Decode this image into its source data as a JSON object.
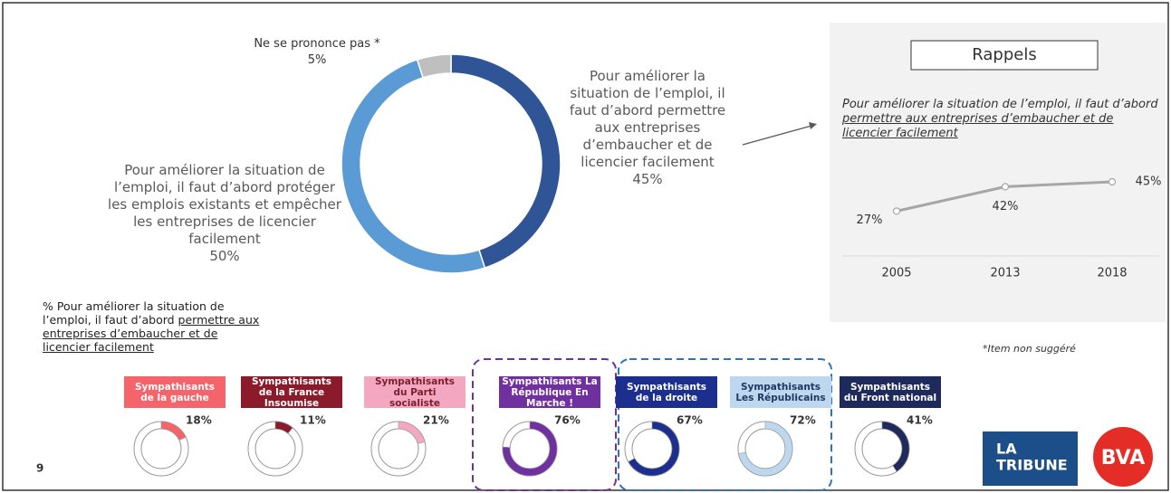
{
  "chart_data": [
    {
      "type": "donut",
      "categories": [
        "Pour améliorer la situation de l’emploi, il faut d’abord permettre aux entreprises d’embaucher et de licencier facilement",
        "Pour améliorer la situation de l’emploi, il faut d’abord protéger les emplois existants et empêcher les entreprises de licencier facilement",
        "Ne se prononce pas *"
      ],
      "values": [
        45,
        50,
        5
      ],
      "value_labels": [
        "45%",
        "50%",
        "5%"
      ],
      "colors": [
        "#2f5597",
        "#5b9bd5",
        "#bfbfbf"
      ]
    },
    {
      "type": "line",
      "title": "Rappels",
      "subtitle": "Pour améliorer la situation de l’emploi, il faut d’abord ",
      "subtitle_underlined": "permettre aux entreprises d’embaucher et de licencier facilement",
      "categories": [
        "2005",
        "2013",
        "2018"
      ],
      "values": [
        27,
        42,
        45
      ],
      "value_labels": [
        "27%",
        "42%",
        "45%"
      ],
      "color": "#a6a6a6",
      "ylim": [
        0,
        100
      ]
    },
    {
      "type": "donut-row",
      "title": "% Pour améliorer la situation de l’emploi, il faut d’abord ",
      "title_underlined": "permettre aux entreprises d’embaucher et de licencier facilement",
      "categories": [
        "Sympathisants de la gauche",
        "Sympathisants de la France Insoumise",
        "Sympathisants du Parti socialiste",
        "Sympathisants La République En Marche !",
        "Sympathisants de la droite",
        "Sympathisants Les Républicains",
        "Sympathisants du Front national"
      ],
      "values": [
        18,
        11,
        21,
        76,
        67,
        72,
        41
      ],
      "value_labels": [
        "18%",
        "11%",
        "21%",
        "76%",
        "67%",
        "72%",
        "41%"
      ],
      "colors": [
        "#f4646a",
        "#8b1a2b",
        "#f4a7c1",
        "#7030a0",
        "#1c2f8f",
        "#bdd7ee",
        "#1f2a5c"
      ],
      "text_colors": [
        "#ffffff",
        "#ffffff",
        "#7b1f2e",
        "#ffffff",
        "#ffffff",
        "#1f3864",
        "#ffffff"
      ]
    }
  ],
  "footnote": "*Item non suggéré",
  "page_number": "9",
  "logos": {
    "tribune": [
      "LA",
      "TRIBUNE"
    ],
    "bva": "BVA"
  }
}
